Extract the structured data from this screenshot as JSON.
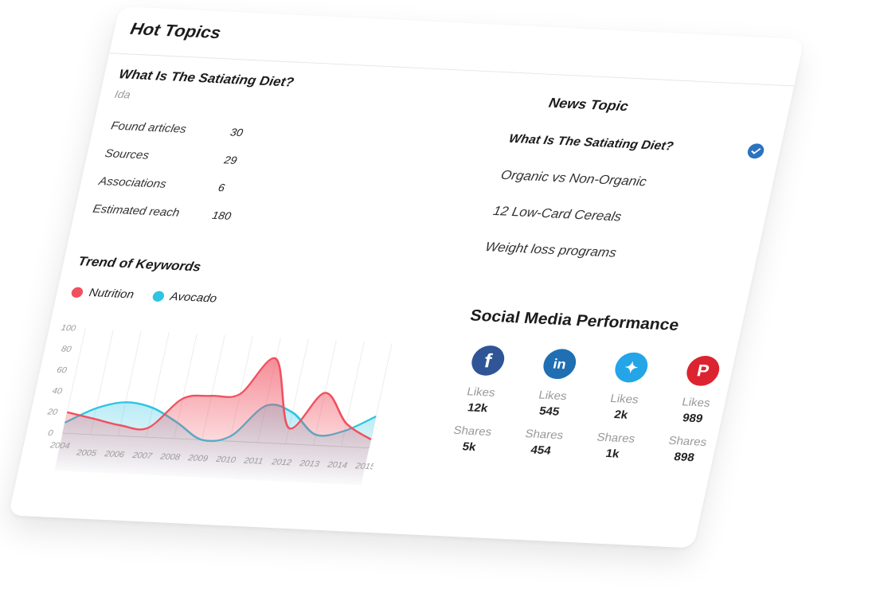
{
  "header": {
    "title": "Hot Topics"
  },
  "topic": {
    "title": "What Is The Satiating Diet?",
    "author": "Ida",
    "stats": [
      {
        "label": "Found articles",
        "value": "30"
      },
      {
        "label": "Sources",
        "value": "29"
      },
      {
        "label": "Associations",
        "value": "6"
      },
      {
        "label": "Estimated reach",
        "value": "180"
      }
    ]
  },
  "trend": {
    "title": "Trend of Keywords",
    "legend": [
      {
        "name": "Nutrition",
        "color": "#f0505f"
      },
      {
        "name": "Avocado",
        "color": "#2ec4e2"
      }
    ]
  },
  "chart_data": {
    "type": "area",
    "x": [
      "2004",
      "2005",
      "2006",
      "2007",
      "2008",
      "2009",
      "2010",
      "2011",
      "2012",
      "2013",
      "2014",
      "2015"
    ],
    "ylim": [
      0,
      100
    ],
    "yticks": [
      "100",
      "80",
      "60",
      "40",
      "20",
      "0"
    ],
    "series": [
      {
        "name": "Nutrition",
        "color": "#f0505f",
        "values": [
          20,
          15,
          10,
          9,
          38,
          42,
          45,
          80,
          15,
          50,
          22,
          8
        ]
      },
      {
        "name": "Avocado",
        "color": "#2ec4e2",
        "values": [
          10,
          25,
          32,
          28,
          15,
          0,
          5,
          35,
          30,
          10,
          15,
          30
        ]
      }
    ]
  },
  "news": {
    "title": "News Topic",
    "items": [
      {
        "label": "What Is The Satiating Diet?",
        "active": true
      },
      {
        "label": "Organic vs Non-Organic",
        "active": false
      },
      {
        "label": "12 Low-Card Cereals",
        "active": false
      },
      {
        "label": "Weight loss programs",
        "active": false
      }
    ]
  },
  "social": {
    "title": "Social Media Performance",
    "likes_label": "Likes",
    "shares_label": "Shares",
    "networks": [
      {
        "icon": "facebook-icon",
        "glyph": "f",
        "color": "#2f5597",
        "likes": "12k",
        "shares": "5k"
      },
      {
        "icon": "linkedin-icon",
        "glyph": "in",
        "color": "#1f6fb2",
        "likes": "545",
        "shares": "454"
      },
      {
        "icon": "twitter-icon",
        "glyph": "✦",
        "color": "#23a5e8",
        "likes": "2k",
        "shares": "1k"
      },
      {
        "icon": "pinterest-icon",
        "glyph": "P",
        "color": "#dc2430",
        "likes": "989",
        "shares": "898"
      }
    ]
  }
}
